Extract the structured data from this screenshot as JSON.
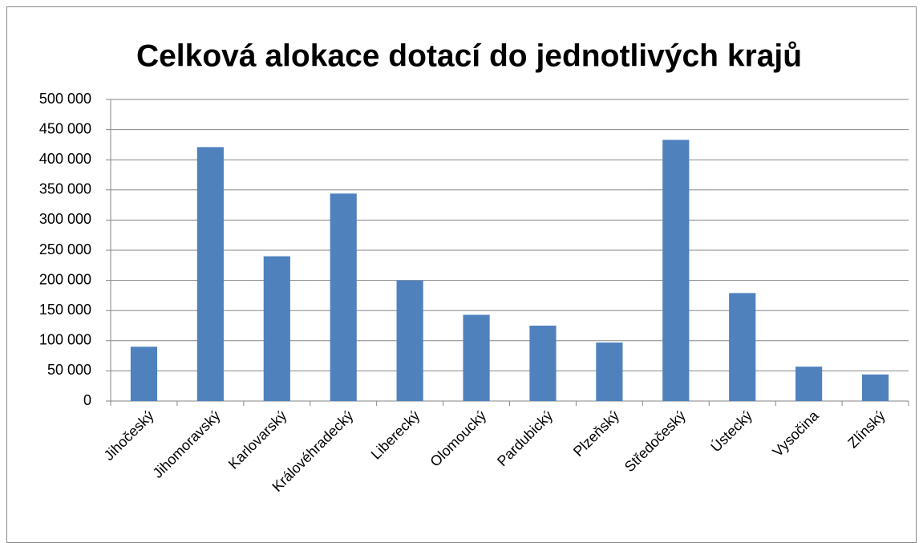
{
  "chart_data": {
    "type": "bar",
    "title": "Celková alokace dotací do jednotlivých krajů",
    "categories": [
      "Jihočeský",
      "Jihomoravský",
      "Karlovarský",
      "Královéhradecký",
      "Liberecký",
      "Olomoucký",
      "Pardubický",
      "Plzeňský",
      "Středočeský",
      "Ústecký",
      "Vysočina",
      "Zlínský"
    ],
    "values": [
      90000,
      421000,
      240000,
      344000,
      200000,
      143000,
      125000,
      97000,
      433000,
      179000,
      57000,
      44000
    ],
    "color": "#4f81bd",
    "ylim": [
      0,
      500000
    ],
    "yticks": [
      0,
      {
        "value": 50000,
        "label": "50 000"
      },
      {
        "value": 100000,
        "label": "100 000"
      },
      {
        "value": 150000,
        "label": "150 000"
      },
      {
        "value": 200000,
        "label": "200 000"
      },
      {
        "value": 250000,
        "label": "250 000"
      },
      {
        "value": 300000,
        "label": "300 000"
      },
      {
        "value": 350000,
        "label": "350 000"
      },
      {
        "value": 400000,
        "label": "400 000"
      },
      {
        "value": 450000,
        "label": "450 000"
      },
      {
        "value": 500000,
        "label": "500 000"
      }
    ],
    "grid": true
  }
}
